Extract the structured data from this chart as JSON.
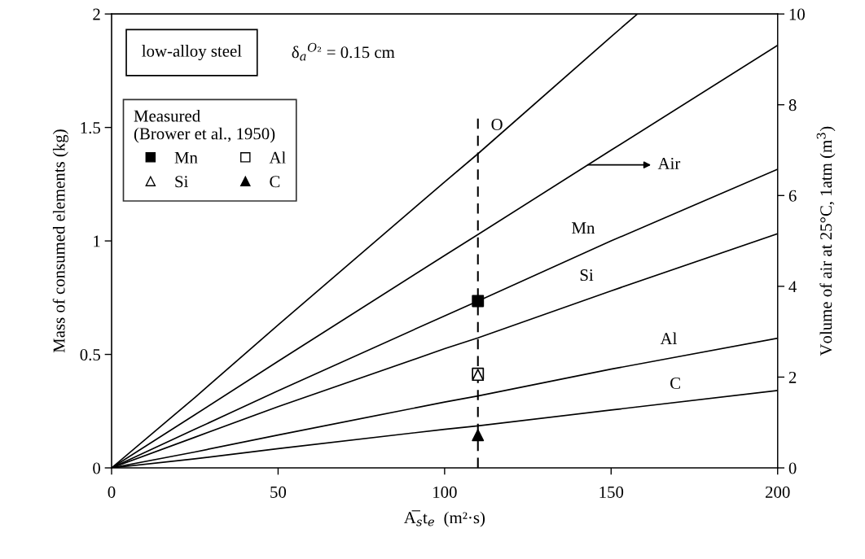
{
  "chart_data": {
    "type": "line",
    "xlabel": "A̅$_{s}$t$_{e}$  (m²·s)",
    "ylabel": "Mass of consumed elements (kg)",
    "y2label": "Volume of air at 25°C, 1atm (m$^{3}$)",
    "legend_title": "Measured\n(Brower et al., 1950)",
    "annotations": [
      "low-alloy steel",
      "δ$_{a}$$^{O₂}$ = 0.15 cm"
    ],
    "xlim": [
      0,
      200
    ],
    "xticks": [
      0,
      50,
      100,
      150,
      200
    ],
    "ylim": [
      0,
      2
    ],
    "yticks": [
      0,
      0.5,
      1,
      1.5,
      2
    ],
    "y2lim": [
      0,
      10
    ],
    "y2ticks": [
      0,
      2,
      4,
      6,
      8,
      10
    ],
    "grid": false,
    "legend": "top left",
    "ref_lines": [
      {
        "axis": "x",
        "value": 110,
        "line_style": "dashed",
        "color": "#000000"
      }
    ],
    "series": [
      {
        "name": "O",
        "color": "#000000",
        "x": [
          0,
          25,
          50,
          100,
          110,
          150,
          157.9
        ],
        "values": [
          0,
          0.31,
          0.63,
          1.26,
          1.384,
          1.9,
          2.0
        ]
      },
      {
        "name": "Air",
        "axis": "y2",
        "color": "#000000",
        "x": [
          0,
          25,
          50,
          100,
          110,
          150,
          200
        ],
        "values": [
          0,
          1.17,
          2.35,
          4.68,
          5.14,
          7.0,
          9.31
        ]
      },
      {
        "name": "Mn",
        "color": "#000000",
        "x": [
          0,
          25,
          50,
          100,
          110,
          150,
          200
        ],
        "values": [
          0,
          0.17,
          0.34,
          0.67,
          0.735,
          1.0,
          1.316
        ]
      },
      {
        "name": "Si",
        "color": "#000000",
        "x": [
          0,
          25,
          50,
          100,
          110,
          150,
          200
        ],
        "values": [
          0,
          0.135,
          0.27,
          0.525,
          0.573,
          0.78,
          1.032
        ]
      },
      {
        "name": "Al",
        "color": "#000000",
        "x": [
          0,
          25,
          50,
          100,
          110,
          150,
          200
        ],
        "values": [
          0,
          0.07,
          0.145,
          0.29,
          0.317,
          0.435,
          0.571
        ]
      },
      {
        "name": "C",
        "color": "#000000",
        "x": [
          0,
          25,
          50,
          100,
          110,
          150,
          200
        ],
        "values": [
          0,
          0.04,
          0.085,
          0.17,
          0.185,
          0.255,
          0.341
        ]
      },
      {
        "name": "Mn",
        "type": "scatter",
        "marker": "square",
        "color": "#000000",
        "x": [
          110
        ],
        "values": [
          0.735
        ]
      },
      {
        "name": "Si",
        "type": "scatter",
        "marker": "triangle",
        "color": "#ffffff",
        "x": [
          110
        ],
        "values": [
          0.41
        ]
      },
      {
        "name": "Al",
        "type": "scatter",
        "marker": "square",
        "color": "#ffffff",
        "x": [
          110
        ],
        "values": [
          0.415
        ]
      },
      {
        "name": "C",
        "type": "scatter",
        "marker": "triangle",
        "color": "#000000",
        "x": [
          110
        ],
        "values": [
          0.144
        ]
      }
    ]
  }
}
